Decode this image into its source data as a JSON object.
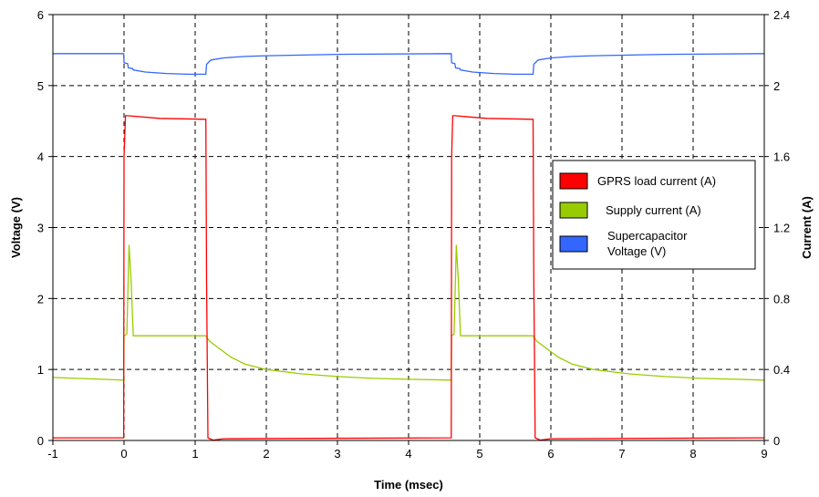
{
  "chart_data": {
    "type": "line",
    "title": "",
    "xlabel": "Time (msec)",
    "ylabel": "Voltage (V)",
    "y2label": "Current (A)",
    "xlim": [
      -1,
      9
    ],
    "ylim": [
      0,
      6
    ],
    "y2lim": [
      0,
      2.4
    ],
    "x_ticks": [
      "-1",
      "0",
      "1",
      "2",
      "3",
      "4",
      "5",
      "6",
      "7",
      "8",
      "9"
    ],
    "y_ticks": [
      "0",
      "1",
      "2",
      "3",
      "4",
      "5",
      "6"
    ],
    "y2_ticks": [
      "0",
      "0.4",
      "0.8",
      "1.2",
      "1.6",
      "2",
      "2.4"
    ],
    "grid": true,
    "legend_position": "right-middle",
    "series": [
      {
        "name": "GPRS load current (A)",
        "axis": "right",
        "color": "#ff0000",
        "x": [
          -1,
          -0.005,
          0,
          0.02,
          0.05,
          0.5,
          1.15,
          1.16,
          1.18,
          1.25,
          1.4,
          4.6,
          4.605,
          4.62,
          4.65,
          5.1,
          5.75,
          5.76,
          5.78,
          5.85,
          6.0,
          9
        ],
        "y": [
          0.015,
          0.015,
          1.6,
          1.83,
          1.83,
          1.815,
          1.81,
          0.9,
          0.015,
          0.002,
          0.01,
          0.015,
          1.6,
          1.83,
          1.83,
          1.815,
          1.81,
          0.9,
          0.015,
          0.002,
          0.01,
          0.015
        ]
      },
      {
        "name": "Supply current (A)",
        "axis": "right",
        "color": "#99cc00",
        "x": [
          -1,
          -0.005,
          0,
          0.04,
          0.07,
          0.1,
          0.13,
          1.15,
          1.2,
          1.3,
          1.5,
          1.7,
          2.0,
          2.5,
          3.0,
          3.5,
          4.0,
          4.6,
          4.605,
          4.64,
          4.67,
          4.7,
          4.73,
          5.75,
          5.8,
          5.9,
          6.1,
          6.3,
          6.6,
          7.1,
          7.6,
          8.1,
          8.6,
          9
        ],
        "y": [
          0.355,
          0.34,
          0.59,
          0.6,
          1.1,
          0.9,
          0.59,
          0.59,
          0.56,
          0.53,
          0.47,
          0.43,
          0.4,
          0.375,
          0.36,
          0.35,
          0.345,
          0.34,
          0.59,
          0.6,
          1.1,
          0.9,
          0.59,
          0.59,
          0.56,
          0.53,
          0.47,
          0.43,
          0.4,
          0.375,
          0.36,
          0.35,
          0.345,
          0.34
        ]
      },
      {
        "name": "Supercapacitor Voltage (V)",
        "axis": "left",
        "color": "#3366ff",
        "x": [
          -1,
          -0.005,
          0,
          0.05,
          0.06,
          0.12,
          0.13,
          0.3,
          0.6,
          0.9,
          1.15,
          1.16,
          1.22,
          1.4,
          1.7,
          2.0,
          2.5,
          3.0,
          4.6,
          4.605,
          4.65,
          4.66,
          4.72,
          4.73,
          4.9,
          5.2,
          5.5,
          5.75,
          5.76,
          5.82,
          6.0,
          6.3,
          6.6,
          7.1,
          7.6,
          9
        ],
        "y": [
          5.45,
          5.45,
          5.32,
          5.31,
          5.25,
          5.24,
          5.22,
          5.19,
          5.17,
          5.16,
          5.16,
          5.3,
          5.36,
          5.39,
          5.41,
          5.42,
          5.43,
          5.44,
          5.45,
          5.32,
          5.31,
          5.25,
          5.24,
          5.22,
          5.19,
          5.17,
          5.16,
          5.16,
          5.3,
          5.36,
          5.39,
          5.41,
          5.42,
          5.43,
          5.44,
          5.45
        ]
      }
    ]
  }
}
